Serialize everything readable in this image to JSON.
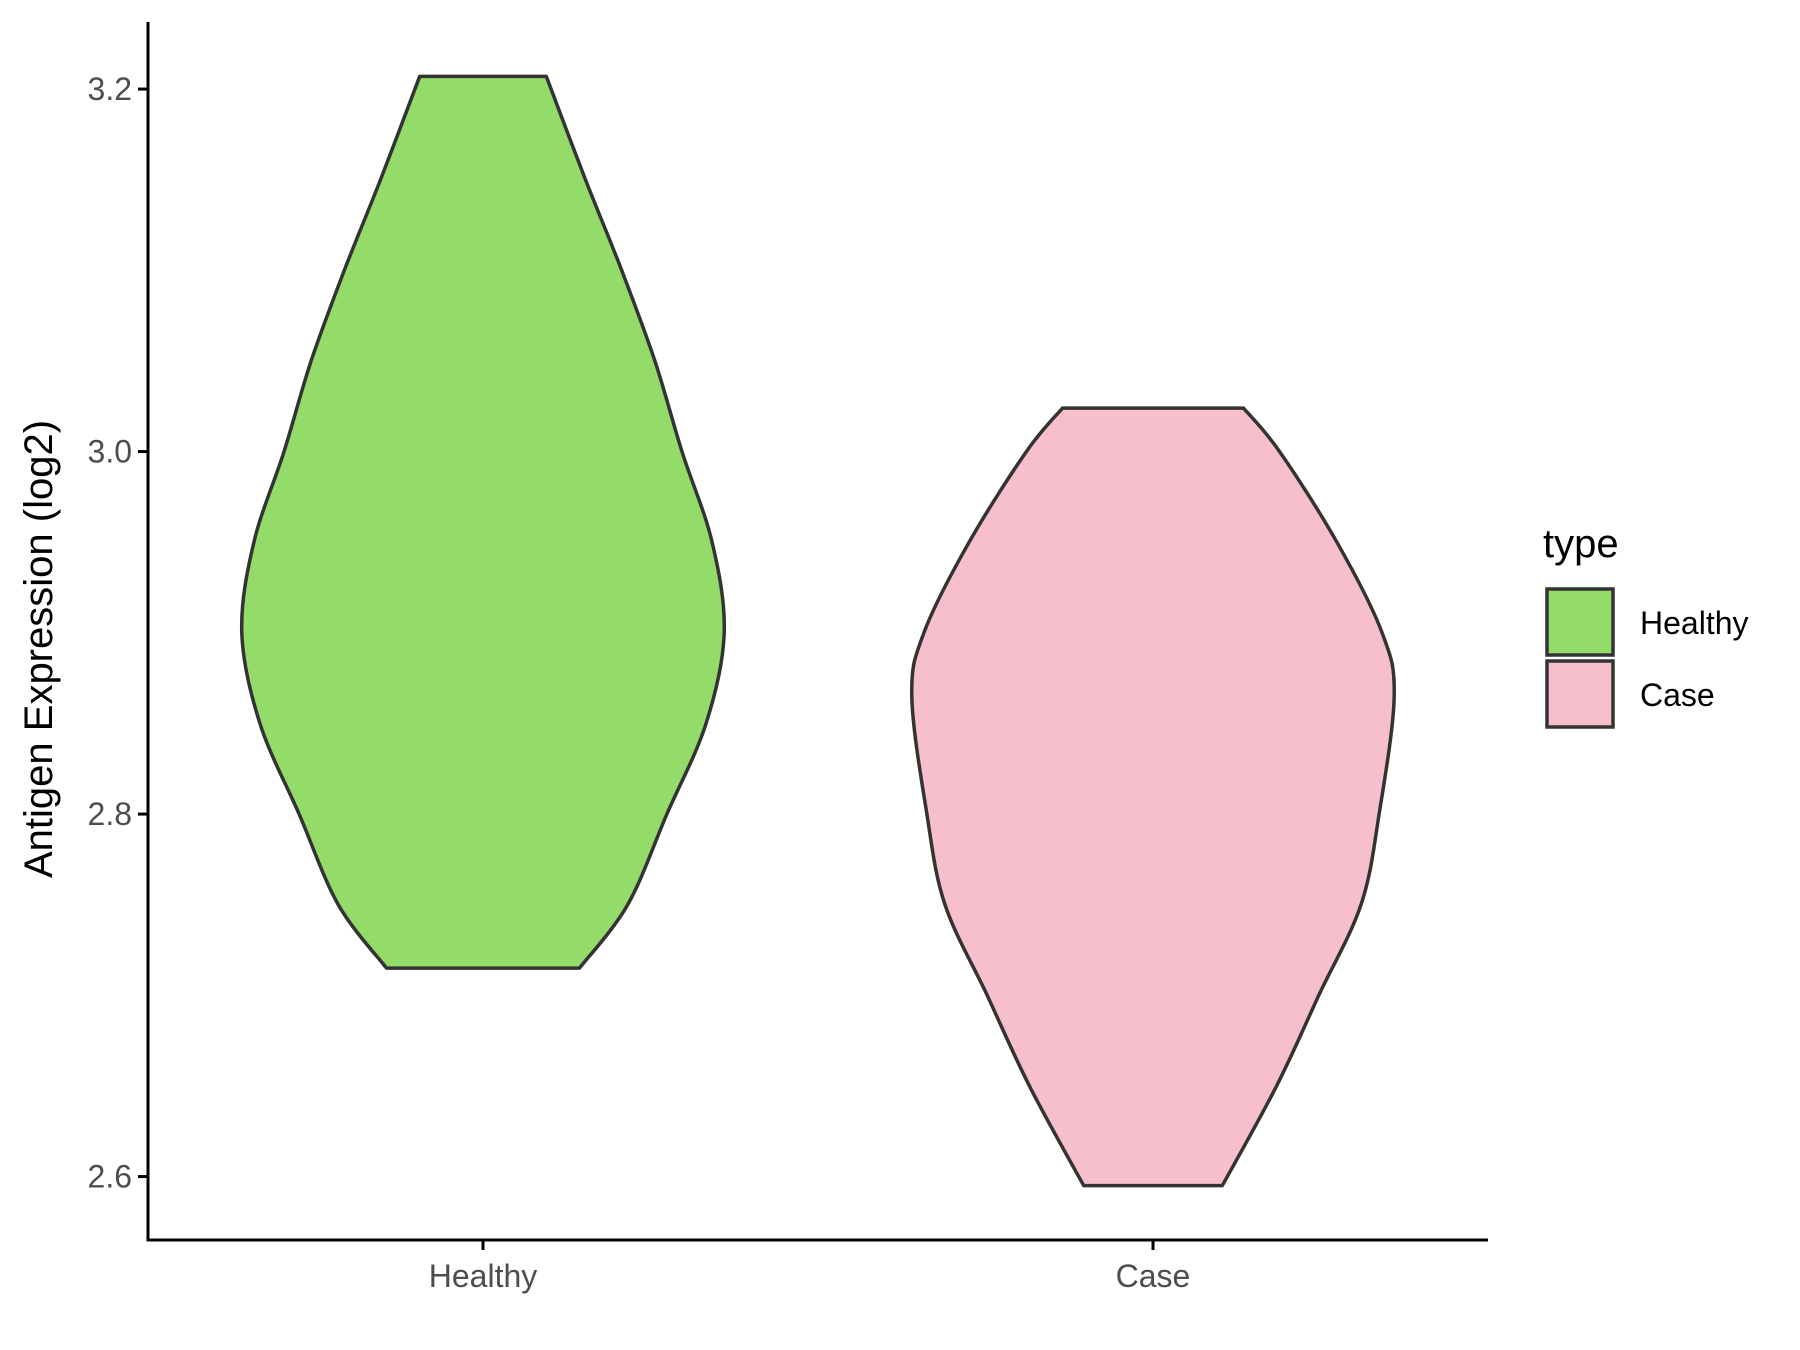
{
  "chart_data": {
    "type": "violin",
    "title": "",
    "xlabel": "",
    "ylabel": "Antigen Expression (log2)",
    "ylim": [
      2.565,
      3.237
    ],
    "y_ticks": [
      2.6,
      2.8,
      3.0,
      3.2
    ],
    "y_tick_labels": [
      "2.6",
      "2.8",
      "3.0",
      "3.2"
    ],
    "categories": [
      "Healthy",
      "Case"
    ],
    "grid": false,
    "outline_color": "#333333",
    "legend": {
      "title": "type",
      "position": "right",
      "entries": [
        {
          "label": "Healthy",
          "color": "#93DC6A"
        },
        {
          "label": "Case",
          "color": "#F7BFCB"
        }
      ]
    },
    "series": [
      {
        "category": "Healthy",
        "color": "#93DC6A",
        "min": 2.715,
        "max": 3.207,
        "density_profile": [
          [
            3.207,
            0.21
          ],
          [
            3.15,
            0.34
          ],
          [
            3.1,
            0.46
          ],
          [
            3.05,
            0.57
          ],
          [
            3.0,
            0.66
          ],
          [
            2.95,
            0.76
          ],
          [
            2.9,
            0.8
          ],
          [
            2.85,
            0.74
          ],
          [
            2.8,
            0.61
          ],
          [
            2.75,
            0.48
          ],
          [
            2.715,
            0.32
          ]
        ]
      },
      {
        "category": "Case",
        "color": "#F7BFCB",
        "min": 2.595,
        "max": 3.024,
        "density_profile": [
          [
            3.024,
            0.3
          ],
          [
            3.0,
            0.42
          ],
          [
            2.95,
            0.61
          ],
          [
            2.9,
            0.76
          ],
          [
            2.865,
            0.8
          ],
          [
            2.8,
            0.75
          ],
          [
            2.75,
            0.69
          ],
          [
            2.7,
            0.55
          ],
          [
            2.65,
            0.41
          ],
          [
            2.595,
            0.23
          ]
        ]
      }
    ]
  }
}
